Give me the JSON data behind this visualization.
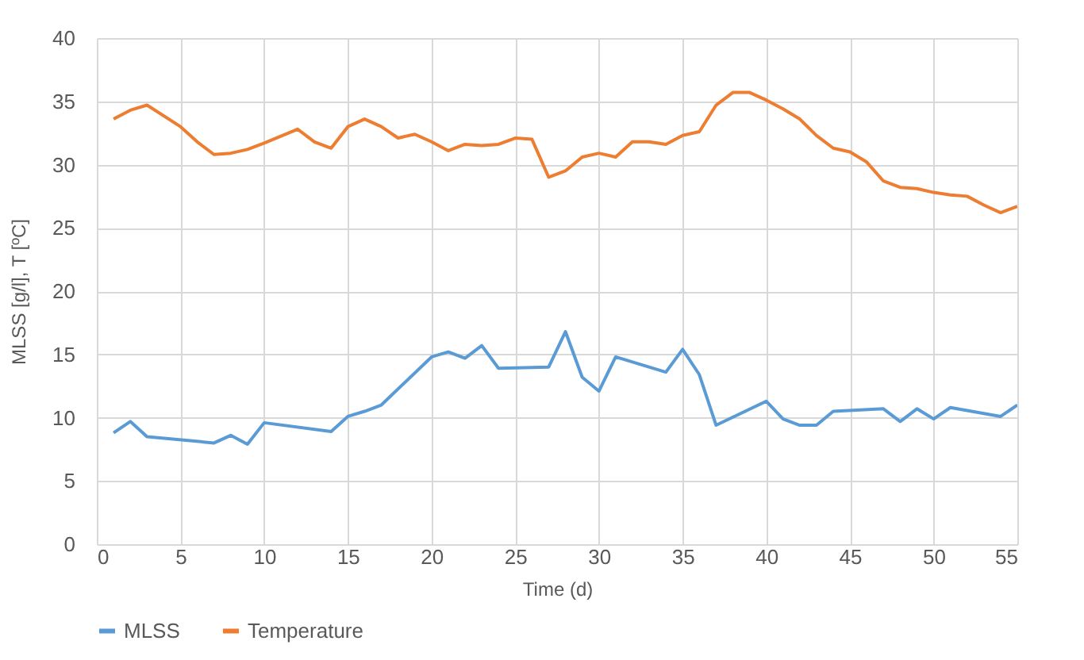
{
  "chart_data": {
    "type": "line",
    "xlabel": "Time (d)",
    "ylabel": "MLSS [g/l], T [ºC]",
    "xlim": [
      0,
      55
    ],
    "xticks": [
      0,
      5,
      10,
      15,
      20,
      25,
      30,
      35,
      40,
      45,
      50,
      55
    ],
    "ylim": [
      0,
      40
    ],
    "yticks": [
      0,
      5,
      10,
      15,
      20,
      25,
      30,
      35,
      40
    ],
    "grid": true,
    "legend": "bottom",
    "marker": "none",
    "series": [
      {
        "name": "MLSS",
        "color": "#5b9bd5",
        "x": [
          1,
          2,
          3,
          7,
          8,
          9,
          10,
          14,
          15,
          16,
          17,
          20,
          21,
          22,
          23,
          24,
          27,
          28,
          29,
          30,
          31,
          34,
          35,
          36,
          37,
          40,
          41,
          42,
          43,
          44,
          47,
          48,
          49,
          50,
          51,
          54,
          55
        ],
        "values": [
          8.8,
          9.7,
          8.5,
          8.0,
          8.6,
          7.9,
          9.6,
          8.9,
          10.1,
          10.5,
          11.0,
          14.8,
          15.2,
          14.7,
          15.7,
          13.9,
          14.0,
          16.8,
          13.2,
          12.1,
          14.8,
          13.6,
          15.4,
          13.4,
          9.4,
          11.3,
          9.9,
          9.4,
          9.4,
          10.5,
          10.7,
          9.7,
          10.7,
          9.9,
          10.8,
          10.1,
          11.0
        ]
      },
      {
        "name": "Temperature",
        "color": "#ed7d31",
        "x": [
          1,
          2,
          3,
          5,
          6,
          7,
          8,
          9,
          10,
          12,
          13,
          14,
          15,
          16,
          17,
          18,
          19,
          20,
          21,
          22,
          23,
          24,
          25,
          26,
          27,
          28,
          29,
          30,
          31,
          32,
          33,
          34,
          35,
          36,
          37,
          38,
          39,
          40,
          41,
          42,
          43,
          44,
          45,
          46,
          47,
          48,
          49,
          50,
          51,
          52,
          53,
          54,
          55
        ],
        "values": [
          33.6,
          34.3,
          34.7,
          33.0,
          31.8,
          30.8,
          30.9,
          31.2,
          31.7,
          32.8,
          31.8,
          31.3,
          33.0,
          33.6,
          33.0,
          32.1,
          32.4,
          31.8,
          31.1,
          31.6,
          31.5,
          31.6,
          32.1,
          32.0,
          29.0,
          29.5,
          30.6,
          30.9,
          30.6,
          31.8,
          31.8,
          31.6,
          32.3,
          32.6,
          34.7,
          35.7,
          35.7,
          35.1,
          34.4,
          33.6,
          32.3,
          31.3,
          31.0,
          30.2,
          28.7,
          28.2,
          28.1,
          27.8,
          27.6,
          27.5,
          26.8,
          26.2,
          26.7
        ]
      }
    ]
  }
}
